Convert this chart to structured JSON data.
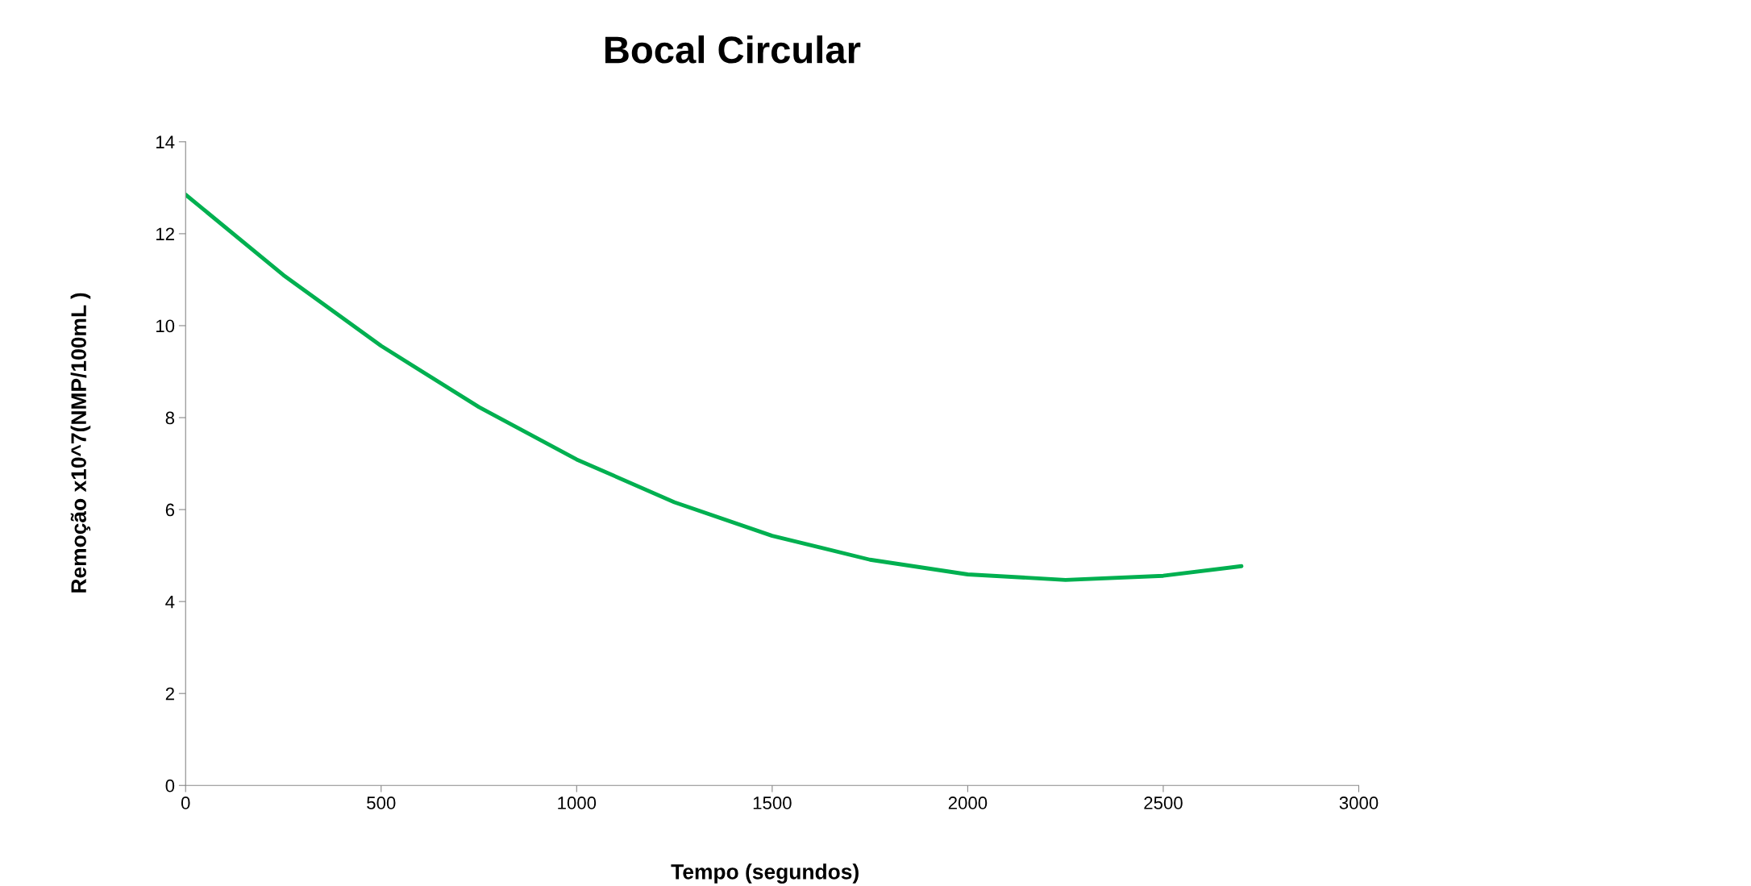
{
  "chart_data": {
    "type": "line",
    "title": "Bocal Circular",
    "xlabel": "Tempo (segundos)",
    "ylabel": "Remoção x10^7(NMP/100mL )",
    "series": [
      {
        "color": "#00b050",
        "x": [
          0,
          250,
          500,
          750,
          1000,
          1250,
          1500,
          1750,
          2000,
          2250,
          2500,
          2700
        ],
        "values": [
          12.85,
          11.1,
          9.56,
          8.23,
          7.09,
          6.16,
          5.43,
          4.91,
          4.59,
          4.47,
          4.56,
          4.77
        ]
      }
    ],
    "xlim": [
      0,
      3000
    ],
    "xticks": [
      0,
      500,
      1000,
      1500,
      2000,
      2500,
      3000
    ],
    "ylim": [
      0,
      14
    ],
    "yticks": [
      0,
      2,
      4,
      6,
      8,
      10,
      12,
      14
    ],
    "grid": false,
    "legend": false,
    "marker": "none",
    "line_style": "solid"
  }
}
